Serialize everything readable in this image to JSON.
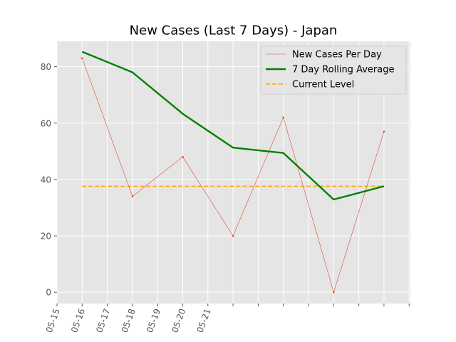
{
  "chart_data": {
    "type": "line",
    "title": "New Cases (Last 7 Days) - Japan",
    "xlabel": "",
    "ylabel": "",
    "x_tick_labels": [
      "05-15",
      "05-16",
      "05-17",
      "05-18",
      "05-19",
      "05-20",
      "05-21"
    ],
    "yticks": [
      0,
      20,
      40,
      60,
      80
    ],
    "ylim": [
      -4,
      89
    ],
    "grid": true,
    "legend_position": "top-right",
    "series": [
      {
        "name": "New Cases Per Day",
        "color": "#e24a33",
        "style": "thin-line-with-markers",
        "points": [
          {
            "date": "05-15 12:00",
            "value": 83
          },
          {
            "date": "05-16 12:00",
            "value": 34
          },
          {
            "date": "05-17 12:00",
            "value": 48
          },
          {
            "date": "05-18 12:00",
            "value": 20
          },
          {
            "date": "05-19 12:00",
            "value": 62
          },
          {
            "date": "05-20 12:00",
            "value": 0
          },
          {
            "date": "05-21 12:00",
            "value": 57
          }
        ]
      },
      {
        "name": "7 Day Rolling Average",
        "color": "#008000",
        "style": "thick-line",
        "points": [
          {
            "date": "05-15 12:00",
            "value": 85.3
          },
          {
            "date": "05-16 12:00",
            "value": 78.0
          },
          {
            "date": "05-17 12:00",
            "value": 63.3
          },
          {
            "date": "05-18 12:00",
            "value": 51.3
          },
          {
            "date": "05-19 12:00",
            "value": 49.4
          },
          {
            "date": "05-20 12:00",
            "value": 32.9
          },
          {
            "date": "05-21 12:00",
            "value": 37.6
          }
        ]
      },
      {
        "name": "Current Level",
        "color": "#ffa500",
        "style": "dashed-line",
        "points": [
          {
            "date": "05-15 12:00",
            "value": 37.6
          },
          {
            "date": "05-21 12:00",
            "value": 37.6
          }
        ]
      }
    ]
  }
}
